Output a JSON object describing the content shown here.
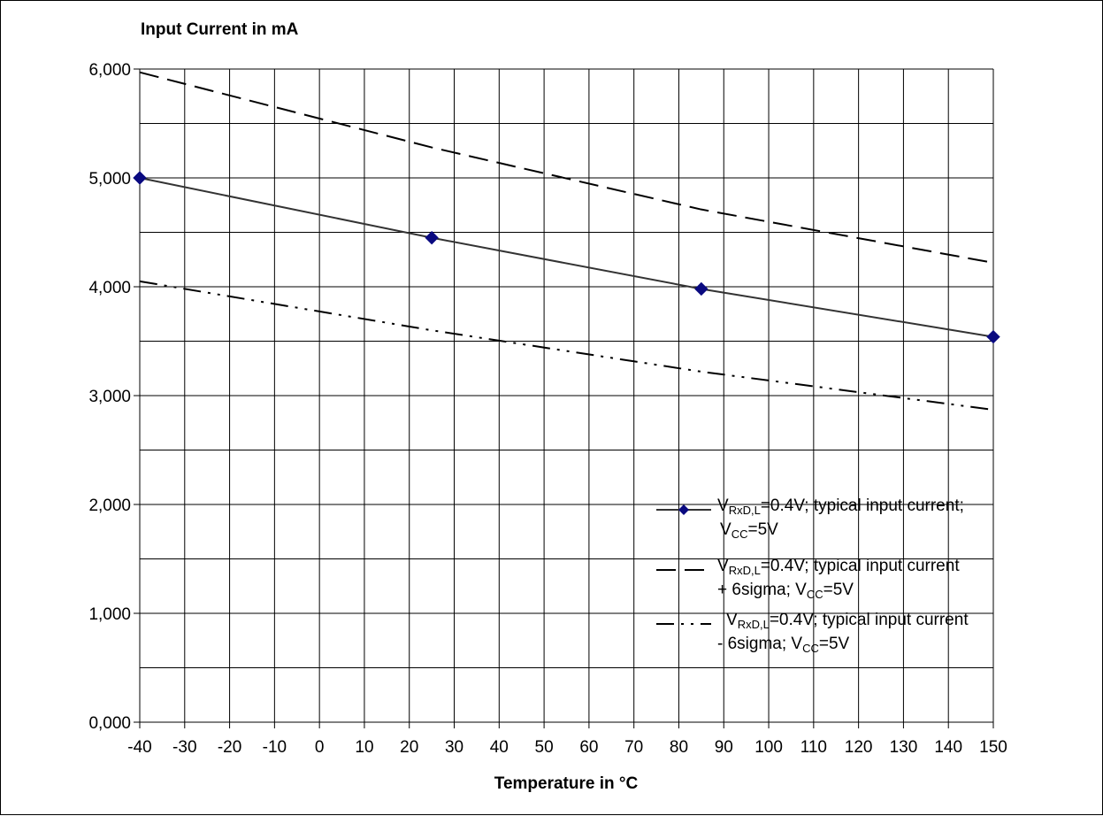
{
  "chart_data": {
    "type": "line",
    "ylabel": "Input Current in mA",
    "xlabel": "Temperature in °C",
    "xlim": [
      -40,
      150
    ],
    "ylim": [
      0,
      6
    ],
    "x_ticks": [
      -40,
      -30,
      -20,
      -10,
      0,
      10,
      20,
      30,
      40,
      50,
      60,
      70,
      80,
      90,
      100,
      110,
      120,
      130,
      140,
      150
    ],
    "x_tick_labels": [
      "-40",
      "-30",
      "-20",
      "-10",
      "0",
      "10",
      "20",
      "30",
      "40",
      "50",
      "60",
      "70",
      "80",
      "90",
      "100",
      "110",
      "120",
      "130",
      "140",
      "150"
    ],
    "y_ticks": [
      0,
      1,
      2,
      3,
      4,
      5,
      6
    ],
    "y_tick_labels": [
      "0,000",
      "1,000",
      "2,000",
      "3,000",
      "4,000",
      "5,000",
      "6,000"
    ],
    "y_minor_gridlines": [
      0.5,
      1.5,
      2.5,
      3.5,
      4.5,
      5.5
    ],
    "grid": true,
    "legend_position": "bottom-right",
    "series": [
      {
        "style": "solid-with-diamond-markers",
        "color": "#333333",
        "marker_color": "#0a0a80",
        "legend": {
          "v_main": "V",
          "v_sub": "RxD,L",
          "line1_rest": "=0.4V; typical input current;",
          "line2_main": "V",
          "line2_sub": "CC",
          "line2_rest": "=5V"
        },
        "points": [
          {
            "x": -40,
            "y": 5.0
          },
          {
            "x": 25,
            "y": 4.45
          },
          {
            "x": 85,
            "y": 3.98
          },
          {
            "x": 150,
            "y": 3.54
          }
        ]
      },
      {
        "style": "dashed",
        "color": "#000000",
        "legend": {
          "v_main": "V",
          "v_sub": "RxD,L",
          "line1_rest": "=0.4V; typical input current",
          "line2_prefix": "+ 6sigma; V",
          "line2_sub": "CC",
          "line2_rest": "=5V"
        },
        "points": [
          {
            "x": -40,
            "y": 5.97
          },
          {
            "x": 25,
            "y": 5.28
          },
          {
            "x": 85,
            "y": 4.71
          },
          {
            "x": 150,
            "y": 4.22
          }
        ]
      },
      {
        "style": "dash-dot-dot",
        "color": "#000000",
        "legend": {
          "v_main": "V",
          "v_sub": "RxD,L",
          "line1_rest": "=0.4V; typical input current",
          "line2_prefix": "- 6sigma; V",
          "line2_sub": "CC",
          "line2_rest": "=5V"
        },
        "points": [
          {
            "x": -40,
            "y": 4.05
          },
          {
            "x": 25,
            "y": 3.6
          },
          {
            "x": 85,
            "y": 3.22
          },
          {
            "x": 150,
            "y": 2.87
          }
        ]
      }
    ]
  }
}
